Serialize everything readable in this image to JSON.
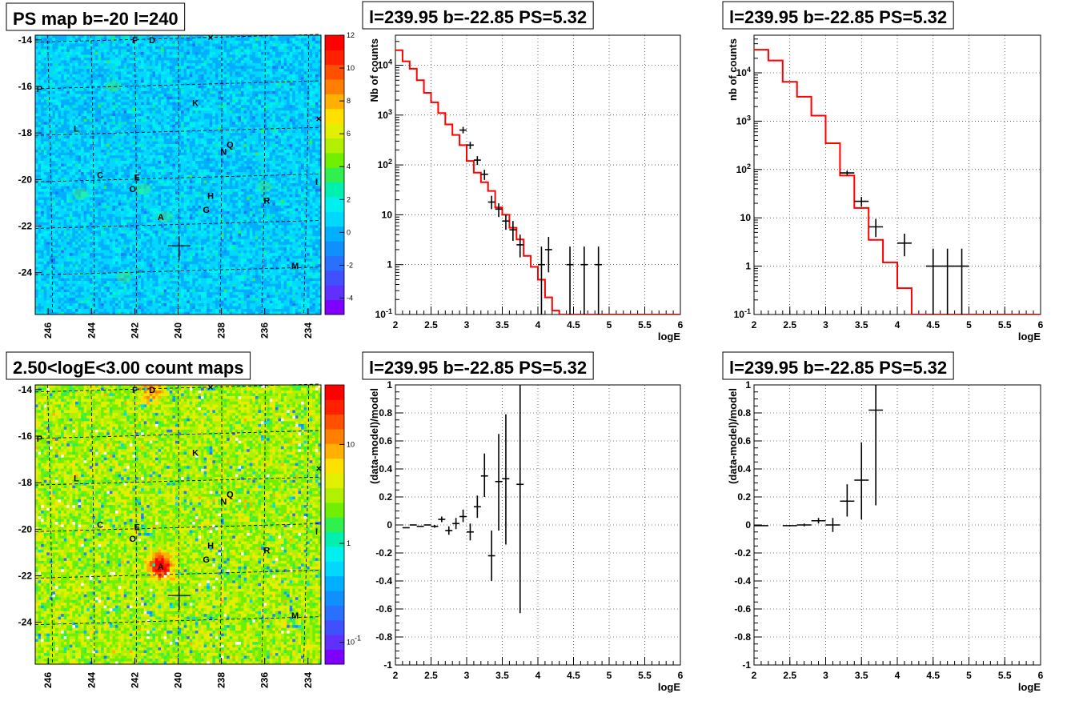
{
  "chart_data": [
    {
      "id": "map1",
      "type": "heatmap",
      "title": "PS map b=-20 l=240",
      "palette_scale": "linear",
      "z_ticks": [
        "-4",
        "-2",
        "0",
        "2",
        "4",
        "6",
        "8",
        "10",
        "12"
      ],
      "zlim": [
        -5,
        12
      ],
      "x_ticks": [
        "246",
        "244",
        "242",
        "240",
        "238",
        "236",
        "234"
      ],
      "y_ticks": [
        "-14",
        "-16",
        "-18",
        "-20",
        "-22",
        "-24"
      ],
      "xlim": [
        246.6,
        233.4
      ],
      "ylim": [
        -25.8,
        -13.8
      ],
      "background_color": "#00e8f0",
      "labels": [
        {
          "text": "F",
          "l": 242.0,
          "b": -14.0
        },
        {
          "text": "D",
          "l": 241.2,
          "b": -14.0
        },
        {
          "text": "P",
          "l": 246.4,
          "b": -16.1
        },
        {
          "text": "K",
          "l": 239.2,
          "b": -16.7
        },
        {
          "text": "L",
          "l": 244.7,
          "b": -17.8
        },
        {
          "text": "Q",
          "l": 237.6,
          "b": -18.5
        },
        {
          "text": "N",
          "l": 237.9,
          "b": -18.8
        },
        {
          "text": "C",
          "l": 243.6,
          "b": -19.8
        },
        {
          "text": "E",
          "l": 241.9,
          "b": -19.9
        },
        {
          "text": "O",
          "l": 242.1,
          "b": -20.4
        },
        {
          "text": "I",
          "l": 233.6,
          "b": -20.1
        },
        {
          "text": "H",
          "l": 238.5,
          "b": -20.7
        },
        {
          "text": "R",
          "l": 235.9,
          "b": -20.9
        },
        {
          "text": "G",
          "l": 238.7,
          "b": -21.3
        },
        {
          "text": "A",
          "l": 240.8,
          "b": -21.6
        },
        {
          "text": "M",
          "l": 234.6,
          "b": -23.7
        }
      ],
      "markers": [
        {
          "symbol": "x",
          "l": 238.5,
          "b": -13.9
        },
        {
          "symbol": "x",
          "l": 233.5,
          "b": -17.4
        }
      ],
      "target": {
        "l": 239.95,
        "b": -22.85
      }
    },
    {
      "id": "spec1",
      "type": "line",
      "title": "l=239.95 b=-22.85 PS=5.32",
      "xlabel": "logE",
      "ylabel": "Nb of counts",
      "y_scale": "log",
      "xlim": [
        2,
        6
      ],
      "ylim": [
        0.1,
        40000
      ],
      "x_ticks": [
        "2",
        "2.5",
        "3",
        "3.5",
        "4",
        "4.5",
        "5",
        "5.5",
        "6"
      ],
      "y_ticks": [
        "10^-1",
        "1",
        "10",
        "10^2",
        "10^3",
        "10^4"
      ],
      "model_color": "#ff0000",
      "model_bin_width": 0.1,
      "model_x": [
        2.0,
        2.1,
        2.2,
        2.3,
        2.4,
        2.5,
        2.6,
        2.7,
        2.8,
        2.9,
        3.0,
        3.1,
        3.2,
        3.3,
        3.4,
        3.5,
        3.6,
        3.7,
        3.8,
        3.9,
        4.0,
        4.1,
        4.2,
        4.3,
        4.4,
        4.5,
        4.6,
        4.7,
        4.8,
        4.9,
        5.0,
        5.1,
        5.2,
        5.3,
        5.4,
        5.5,
        5.6,
        5.7,
        5.8,
        5.9
      ],
      "model_y": [
        20000,
        12000,
        8500,
        5000,
        2800,
        1800,
        1100,
        650,
        400,
        250,
        120,
        70,
        45,
        30,
        14,
        10,
        5.5,
        3.2,
        1.5,
        0.9,
        0.5,
        0.22,
        0.12,
        0.1,
        0.1,
        0.1,
        0.1,
        0.1,
        0.1,
        0.1,
        0.1,
        0.1,
        0.1,
        0.1,
        0.1,
        0.1,
        0.1,
        0.1,
        0.1,
        0.1
      ],
      "points": [
        {
          "x": 2.95,
          "y": 500,
          "lo": 430,
          "hi": 580,
          "dx": 0.05
        },
        {
          "x": 3.05,
          "y": 250,
          "lo": 210,
          "hi": 290,
          "dx": 0.05
        },
        {
          "x": 3.15,
          "y": 125,
          "lo": 100,
          "hi": 150,
          "dx": 0.05
        },
        {
          "x": 3.25,
          "y": 65,
          "lo": 50,
          "hi": 80,
          "dx": 0.05
        },
        {
          "x": 3.35,
          "y": 18,
          "lo": 13,
          "hi": 24,
          "dx": 0.05
        },
        {
          "x": 3.45,
          "y": 13,
          "lo": 9,
          "hi": 17,
          "dx": 0.05
        },
        {
          "x": 3.55,
          "y": 7.5,
          "lo": 5,
          "hi": 10,
          "dx": 0.05
        },
        {
          "x": 3.65,
          "y": 5,
          "lo": 3,
          "hi": 7.5,
          "dx": 0.05
        },
        {
          "x": 3.75,
          "y": 2.5,
          "lo": 1.4,
          "hi": 4,
          "dx": 0.05
        },
        {
          "x": 4.05,
          "y": 1,
          "lo": 0.1,
          "hi": 2.3,
          "dx": 0.05
        },
        {
          "x": 4.15,
          "y": 2,
          "lo": 0.7,
          "hi": 3.6,
          "dx": 0.05
        },
        {
          "x": 4.45,
          "y": 1,
          "lo": 0.1,
          "hi": 2.3,
          "dx": 0.05
        },
        {
          "x": 4.65,
          "y": 1,
          "lo": 0.1,
          "hi": 2.3,
          "dx": 0.05
        },
        {
          "x": 4.85,
          "y": 1,
          "lo": 0.1,
          "hi": 2.3,
          "dx": 0.05
        }
      ]
    },
    {
      "id": "spec2",
      "type": "line",
      "title": "l=239.95 b=-22.85 PS=5.32",
      "xlabel": "logE",
      "ylabel": "nb of counts",
      "y_scale": "log",
      "xlim": [
        2,
        6
      ],
      "ylim": [
        0.1,
        60000
      ],
      "x_ticks": [
        "2",
        "2.5",
        "3",
        "3.5",
        "4",
        "4.5",
        "5",
        "5.5",
        "6"
      ],
      "y_ticks": [
        "10^-1",
        "1",
        "10",
        "10^2",
        "10^3",
        "10^4"
      ],
      "model_color": "#ff0000",
      "model_bin_width": 0.2,
      "model_x": [
        2.0,
        2.2,
        2.4,
        2.6,
        2.8,
        3.0,
        3.2,
        3.4,
        3.6,
        3.8,
        4.0,
        4.2,
        4.4,
        4.6,
        4.8,
        5.0,
        5.2,
        5.4,
        5.6,
        5.8
      ],
      "model_y": [
        30000,
        18000,
        6500,
        3200,
        1300,
        350,
        75,
        16,
        3.5,
        1.2,
        0.35,
        0.1,
        0.1,
        0.1,
        0.1,
        0.1,
        0.1,
        0.1,
        0.1,
        0.1
      ],
      "points": [
        {
          "x": 3.3,
          "y": 85,
          "lo": 75,
          "hi": 95,
          "dx": 0.1
        },
        {
          "x": 3.5,
          "y": 22,
          "lo": 17,
          "hi": 27,
          "dx": 0.1
        },
        {
          "x": 3.7,
          "y": 6.5,
          "lo": 4,
          "hi": 9.5,
          "dx": 0.1
        },
        {
          "x": 4.1,
          "y": 3,
          "lo": 1.6,
          "hi": 4.7,
          "dx": 0.1
        },
        {
          "x": 4.5,
          "y": 1,
          "lo": 0.1,
          "hi": 2.3,
          "dx": 0.1
        },
        {
          "x": 4.7,
          "y": 1,
          "lo": 0.1,
          "hi": 2.3,
          "dx": 0.1
        },
        {
          "x": 4.9,
          "y": 1,
          "lo": 0.1,
          "hi": 2.3,
          "dx": 0.1
        }
      ]
    },
    {
      "id": "map2",
      "type": "heatmap",
      "title": "2.50<logE<3.00 count maps",
      "palette_scale": "log",
      "z_ticks": [
        "10^-1",
        "1",
        "10"
      ],
      "zlim": [
        0.06,
        40
      ],
      "x_ticks": [
        "246",
        "244",
        "242",
        "240",
        "238",
        "236",
        "234"
      ],
      "y_ticks": [
        "-14",
        "-16",
        "-18",
        "-20",
        "-22",
        "-24"
      ],
      "xlim": [
        246.6,
        233.4
      ],
      "ylim": [
        -25.8,
        -13.8
      ],
      "background_color": "#70e030",
      "hotspots": [
        {
          "l": 240.8,
          "b": -21.6,
          "strength": "high"
        },
        {
          "l": 241.2,
          "b": -14.0,
          "strength": "low"
        }
      ],
      "labels": [
        {
          "text": "F",
          "l": 242.0,
          "b": -14.0
        },
        {
          "text": "D",
          "l": 241.2,
          "b": -14.0
        },
        {
          "text": "P",
          "l": 246.4,
          "b": -16.1
        },
        {
          "text": "K",
          "l": 239.2,
          "b": -16.7
        },
        {
          "text": "L",
          "l": 244.7,
          "b": -17.8
        },
        {
          "text": "Q",
          "l": 237.6,
          "b": -18.5
        },
        {
          "text": "N",
          "l": 237.9,
          "b": -18.8
        },
        {
          "text": "C",
          "l": 243.6,
          "b": -19.8
        },
        {
          "text": "E",
          "l": 241.9,
          "b": -19.9
        },
        {
          "text": "O",
          "l": 242.1,
          "b": -20.4
        },
        {
          "text": "I",
          "l": 233.6,
          "b": -20.1
        },
        {
          "text": "H",
          "l": 238.5,
          "b": -20.7
        },
        {
          "text": "R",
          "l": 235.9,
          "b": -20.9
        },
        {
          "text": "G",
          "l": 238.7,
          "b": -21.3
        },
        {
          "text": "A",
          "l": 240.8,
          "b": -21.6
        },
        {
          "text": "M",
          "l": 234.6,
          "b": -23.7
        }
      ],
      "markers": [
        {
          "symbol": "x",
          "l": 238.5,
          "b": -13.9
        },
        {
          "symbol": "x",
          "l": 233.5,
          "b": -17.4
        }
      ],
      "target": {
        "l": 239.95,
        "b": -22.85
      }
    },
    {
      "id": "res1",
      "type": "scatter",
      "title": "l=239.95 b=-22.85 PS=5.32",
      "xlabel": "logE",
      "ylabel": "(data-model)/model",
      "y_scale": "linear",
      "xlim": [
        2,
        6
      ],
      "ylim": [
        -1,
        1
      ],
      "x_ticks": [
        "2",
        "2.5",
        "3",
        "3.5",
        "4",
        "4.5",
        "5",
        "5.5",
        "6"
      ],
      "y_ticks": [
        "-1",
        "-0.8",
        "-0.6",
        "-0.4",
        "-0.2",
        "0",
        "0.2",
        "0.4",
        "0.6",
        "0.8",
        "1"
      ],
      "points": [
        {
          "x": 2.15,
          "y": -0.02,
          "lo": -0.02,
          "hi": -0.02,
          "dx": 0.05
        },
        {
          "x": 2.25,
          "y": 0.0,
          "lo": 0.0,
          "hi": 0.0,
          "dx": 0.05
        },
        {
          "x": 2.35,
          "y": -0.01,
          "lo": -0.01,
          "hi": -0.01,
          "dx": 0.05
        },
        {
          "x": 2.45,
          "y": 0.0,
          "lo": 0.0,
          "hi": 0.0,
          "dx": 0.05
        },
        {
          "x": 2.55,
          "y": -0.01,
          "lo": -0.02,
          "hi": 0.0,
          "dx": 0.05
        },
        {
          "x": 2.65,
          "y": 0.04,
          "lo": 0.02,
          "hi": 0.06,
          "dx": 0.05
        },
        {
          "x": 2.75,
          "y": -0.04,
          "lo": -0.07,
          "hi": -0.01,
          "dx": 0.05
        },
        {
          "x": 2.85,
          "y": 0.01,
          "lo": -0.03,
          "hi": 0.05,
          "dx": 0.05
        },
        {
          "x": 2.95,
          "y": 0.06,
          "lo": 0.02,
          "hi": 0.11,
          "dx": 0.05
        },
        {
          "x": 3.05,
          "y": -0.05,
          "lo": -0.11,
          "hi": 0.01,
          "dx": 0.05
        },
        {
          "x": 3.15,
          "y": 0.13,
          "lo": 0.05,
          "hi": 0.21,
          "dx": 0.05
        },
        {
          "x": 3.25,
          "y": 0.35,
          "lo": 0.2,
          "hi": 0.51,
          "dx": 0.05
        },
        {
          "x": 3.35,
          "y": -0.22,
          "lo": -0.4,
          "hi": -0.04,
          "dx": 0.05
        },
        {
          "x": 3.45,
          "y": 0.31,
          "lo": -0.04,
          "hi": 0.65,
          "dx": 0.05
        },
        {
          "x": 3.55,
          "y": 0.33,
          "lo": -0.14,
          "hi": 0.79,
          "dx": 0.05
        },
        {
          "x": 3.75,
          "y": 0.29,
          "lo": -0.63,
          "hi": 1.0,
          "dx": 0.05
        }
      ]
    },
    {
      "id": "res2",
      "type": "scatter",
      "title": "l=239.95 b=-22.85 PS=5.32",
      "xlabel": "logE",
      "ylabel": "(data-model)/model",
      "y_scale": "linear",
      "xlim": [
        2,
        6
      ],
      "ylim": [
        -1,
        1
      ],
      "x_ticks": [
        "2",
        "2.5",
        "3",
        "3.5",
        "4",
        "4.5",
        "5",
        "5.5",
        "6"
      ],
      "y_ticks": [
        "-1",
        "-0.8",
        "-0.6",
        "-0.4",
        "-0.2",
        "0",
        "0.2",
        "0.4",
        "0.6",
        "0.8",
        "1"
      ],
      "points": [
        {
          "x": 2.1,
          "y": -0.005,
          "lo": -0.005,
          "hi": -0.005,
          "dx": 0.1
        },
        {
          "x": 2.5,
          "y": -0.005,
          "lo": -0.01,
          "hi": 0.0,
          "dx": 0.1
        },
        {
          "x": 2.7,
          "y": 0.0,
          "lo": -0.01,
          "hi": 0.01,
          "dx": 0.1
        },
        {
          "x": 2.9,
          "y": 0.03,
          "lo": 0.01,
          "hi": 0.05,
          "dx": 0.1
        },
        {
          "x": 3.1,
          "y": 0.0,
          "lo": -0.05,
          "hi": 0.05,
          "dx": 0.1
        },
        {
          "x": 3.3,
          "y": 0.17,
          "lo": 0.06,
          "hi": 0.29,
          "dx": 0.1
        },
        {
          "x": 3.5,
          "y": 0.32,
          "lo": 0.04,
          "hi": 0.59,
          "dx": 0.1
        },
        {
          "x": 3.7,
          "y": 0.82,
          "lo": 0.14,
          "hi": 1.0,
          "dx": 0.1
        }
      ]
    }
  ]
}
